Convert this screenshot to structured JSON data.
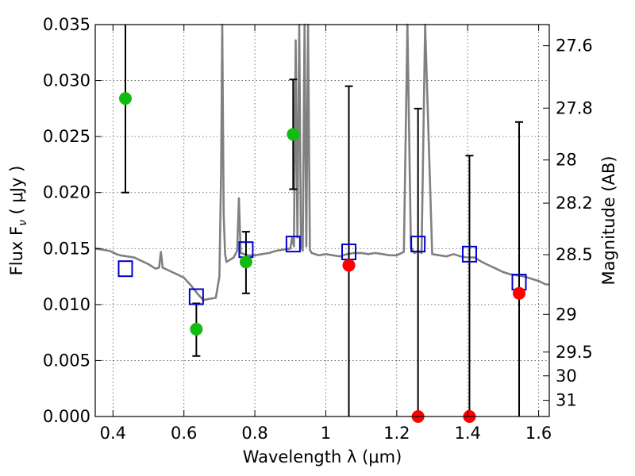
{
  "chart_data": {
    "type": "scatter",
    "xlabel": "Wavelength  λ (μm)",
    "ylabel": "Flux  F",
    "ylabel_sub": "ν",
    "ylabel_unit": "  ( μJy )",
    "y2label": "Magnitude (AB)",
    "xlim": [
      0.35,
      1.63
    ],
    "ylim": [
      0.0,
      0.035
    ],
    "grid": true,
    "x_ticks": [
      {
        "v": 0.4,
        "label": "0.4"
      },
      {
        "v": 0.6,
        "label": "0.6"
      },
      {
        "v": 0.8,
        "label": "0.8"
      },
      {
        "v": 1.0,
        "label": "1"
      },
      {
        "v": 1.2,
        "label": "1.2"
      },
      {
        "v": 1.4,
        "label": "1.4"
      },
      {
        "v": 1.6,
        "label": "1.6"
      }
    ],
    "y_ticks": [
      {
        "v": 0.0,
        "label": "0.000"
      },
      {
        "v": 0.005,
        "label": "0.005"
      },
      {
        "v": 0.01,
        "label": "0.010"
      },
      {
        "v": 0.015,
        "label": "0.015"
      },
      {
        "v": 0.02,
        "label": "0.020"
      },
      {
        "v": 0.025,
        "label": "0.025"
      },
      {
        "v": 0.03,
        "label": "0.030"
      },
      {
        "v": 0.035,
        "label": "0.035"
      }
    ],
    "y2_ticks": [
      {
        "mag": 27.6,
        "label": "27.6"
      },
      {
        "mag": 27.8,
        "label": "27.8"
      },
      {
        "mag": 28,
        "label": "28"
      },
      {
        "mag": 28.2,
        "label": "28.2"
      },
      {
        "mag": 28.5,
        "label": "28.5"
      },
      {
        "mag": 29,
        "label": "29"
      },
      {
        "mag": 29.5,
        "label": "29.5"
      },
      {
        "mag": 30,
        "label": "30"
      },
      {
        "mag": 31,
        "label": "31"
      }
    ],
    "colors": {
      "spectrum": "#808080",
      "detection": "#11bb11",
      "upper_limit": "#ff0000",
      "model": "#0000cc",
      "errorbar": "#000000",
      "grid": "#555555"
    },
    "series": [
      {
        "name": "",
        "kind": "spectrum",
        "x": [
          0.35,
          0.37,
          0.39,
          0.41,
          0.42,
          0.44,
          0.46,
          0.48,
          0.5,
          0.52,
          0.53,
          0.535,
          0.54,
          0.56,
          0.58,
          0.6,
          0.62,
          0.64,
          0.655,
          0.67,
          0.69,
          0.7,
          0.705,
          0.708,
          0.712,
          0.716,
          0.72,
          0.74,
          0.75,
          0.755,
          0.76,
          0.78,
          0.8,
          0.82,
          0.84,
          0.86,
          0.88,
          0.9,
          0.905,
          0.91,
          0.915,
          0.92,
          0.925,
          0.93,
          0.935,
          0.94,
          0.945,
          0.95,
          0.955,
          0.96,
          0.98,
          1.0,
          1.02,
          1.04,
          1.06,
          1.08,
          1.1,
          1.12,
          1.14,
          1.16,
          1.18,
          1.2,
          1.22,
          1.23,
          1.24,
          1.25,
          1.26,
          1.27,
          1.28,
          1.3,
          1.32,
          1.34,
          1.35,
          1.36,
          1.38,
          1.4,
          1.42,
          1.44,
          1.46,
          1.48,
          1.5,
          1.52,
          1.54,
          1.56,
          1.58,
          1.6,
          1.62,
          1.63
        ],
        "y": [
          0.015,
          0.0149,
          0.0148,
          0.0145,
          0.0144,
          0.0143,
          0.0142,
          0.0139,
          0.0136,
          0.0132,
          0.0133,
          0.0147,
          0.0133,
          0.013,
          0.0127,
          0.0124,
          0.0117,
          0.0109,
          0.0104,
          0.0105,
          0.0106,
          0.0125,
          0.022,
          0.035,
          0.018,
          0.0145,
          0.0138,
          0.0142,
          0.0148,
          0.0195,
          0.0146,
          0.0144,
          0.0144,
          0.0145,
          0.0146,
          0.0148,
          0.0149,
          0.015,
          0.016,
          0.0152,
          0.0336,
          0.016,
          0.035,
          0.0152,
          0.0148,
          0.035,
          0.0152,
          0.035,
          0.0149,
          0.0146,
          0.0144,
          0.0145,
          0.0144,
          0.0143,
          0.0145,
          0.0146,
          0.0146,
          0.0145,
          0.0146,
          0.0145,
          0.0144,
          0.0144,
          0.0147,
          0.035,
          0.0151,
          0.0146,
          0.0148,
          0.0146,
          0.035,
          0.0145,
          0.0144,
          0.0143,
          0.0144,
          0.0145,
          0.0143,
          0.0142,
          0.0142,
          0.0138,
          0.0135,
          0.0132,
          0.0129,
          0.0127,
          0.0126,
          0.0125,
          0.0123,
          0.0121,
          0.0118,
          0.0118
        ]
      },
      {
        "name": "",
        "kind": "detections",
        "points": [
          {
            "x": 0.435,
            "y": 0.0284,
            "lo": 0.02,
            "hi": 0.035
          },
          {
            "x": 0.635,
            "y": 0.0078,
            "lo": 0.0054,
            "hi": 0.0101
          },
          {
            "x": 0.775,
            "y": 0.0138,
            "lo": 0.011,
            "hi": 0.0165
          },
          {
            "x": 0.908,
            "y": 0.0252,
            "lo": 0.0203,
            "hi": 0.0301
          }
        ]
      },
      {
        "name": "",
        "kind": "upper_limits",
        "points": [
          {
            "x": 1.065,
            "y": 0.0135,
            "lo": 0.0,
            "hi": 0.0295
          },
          {
            "x": 1.26,
            "y": 0.0,
            "lo": 0.0,
            "hi": 0.0275
          },
          {
            "x": 1.405,
            "y": 0.0,
            "lo": 0.0,
            "hi": 0.0233
          },
          {
            "x": 1.545,
            "y": 0.011,
            "lo": 0.0,
            "hi": 0.0263
          }
        ]
      },
      {
        "name": "",
        "kind": "model_squares",
        "points": [
          {
            "x": 0.435,
            "y": 0.0132
          },
          {
            "x": 0.635,
            "y": 0.0107
          },
          {
            "x": 0.775,
            "y": 0.0149
          },
          {
            "x": 0.908,
            "y": 0.0154
          },
          {
            "x": 1.065,
            "y": 0.0147
          },
          {
            "x": 1.26,
            "y": 0.0154
          },
          {
            "x": 1.405,
            "y": 0.0145
          },
          {
            "x": 1.545,
            "y": 0.012
          }
        ]
      }
    ]
  }
}
